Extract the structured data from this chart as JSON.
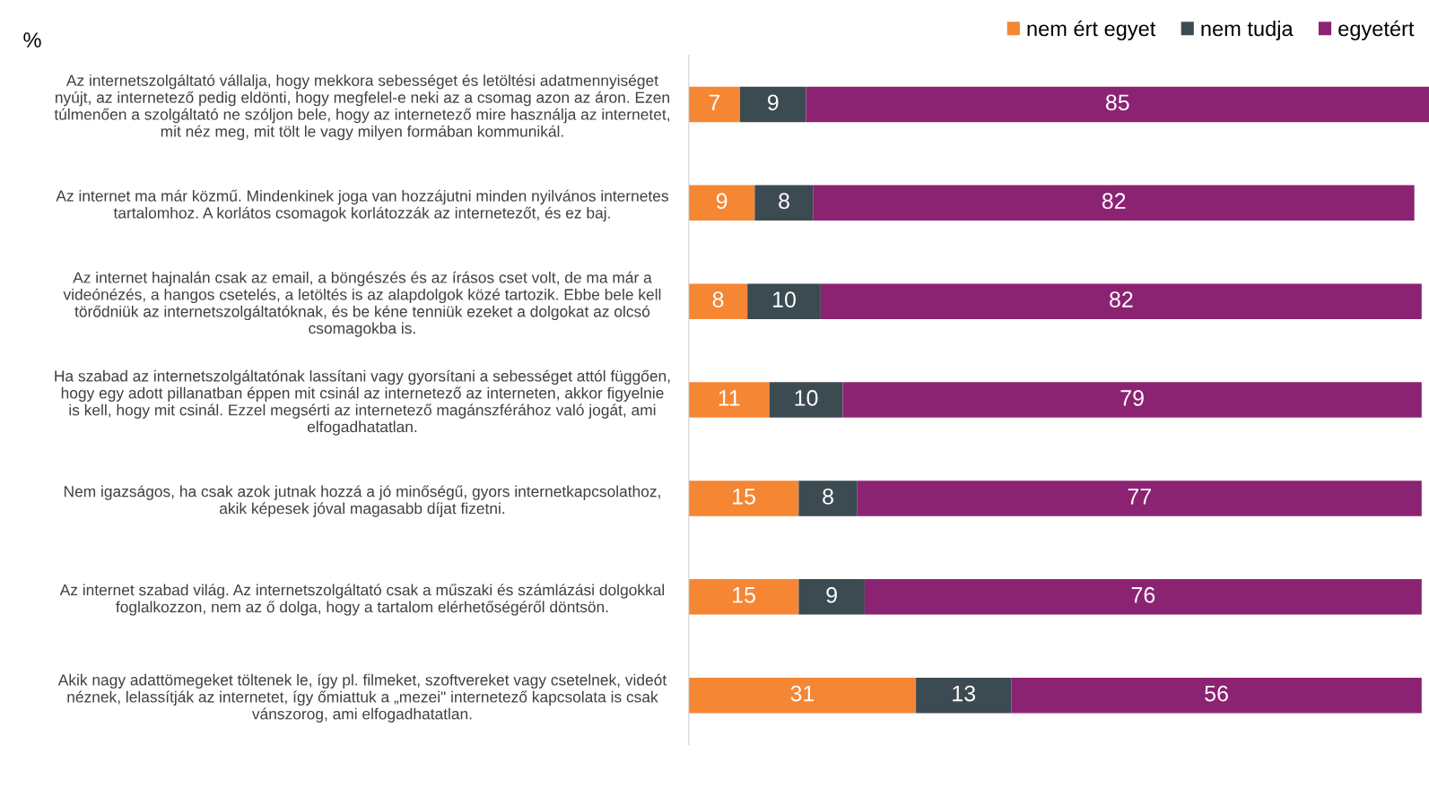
{
  "chart_data": {
    "type": "bar",
    "orientation": "horizontal",
    "stacked": true,
    "title": "%",
    "legend": "top right",
    "data_labels": true,
    "grid": false,
    "categories": [
      "Az internetszolgáltató vállalja, hogy mekkora sebességet és letöltési adatmennyiséget\nnyújt, az internetező pedig eldönti, hogy megfelel-e neki az a csomag azon az áron. Ezen\ntúlmenően a szolgáltató ne szóljon bele, hogy az internetező mire használja az internetet,\nmit néz meg, mit tölt le vagy milyen formában kommunikál.",
      "Az internet ma már közmű. Mindenkinek joga van hozzájutni minden nyilvános internetes\ntartalomhoz. A korlátos csomagok korlátozzák az internetezőt, és ez baj.",
      "Az internet hajnalán csak az email, a böngészés és az írásos cset volt, de ma már a\nvideónézés, a hangos csetelés, a letöltés is az alapdolgok közé tartozik. Ebbe bele kell\ntörődniük az internetszolgáltatóknak, és be kéne tenniük ezeket a dolgokat az olcsó\ncsomagokba is.",
      "Ha szabad az internetszolgáltatónak lassítani vagy gyorsítani a sebességet attól függően,\nhogy egy adott pillanatban éppen mit csinál az internetező az interneten, akkor figyelnie\nis kell, hogy mit csinál. Ezzel megsérti az internetező magánszférához való jogát, ami\nelfogadhatatlan.",
      "Nem igazságos, ha csak azok jutnak hozzá a jó minőségű, gyors internetkapcsolathoz,\nakik képesek jóval magasabb díjat fizetni.",
      "Az internet szabad világ. Az internetszolgáltató csak a műszaki és számlázási dolgokkal\nfoglalkozzon, nem az ő dolga, hogy a tartalom elérhetőségéről döntsön.",
      "Akik nagy adattömegeket töltenek le, így pl. filmeket, szoftvereket vagy csetelnek, videót\nnéznek, lelassítják az internetet, így őmiattuk a „mezei\" internetező kapcsolata is csak\nvánszorog, ami elfogadhatatlan."
    ],
    "series": [
      {
        "name": "nem ért egyet",
        "color": "#f58634",
        "values": [
          7,
          9,
          8,
          11,
          15,
          15,
          31
        ]
      },
      {
        "name": "nem tudja",
        "color": "#3c4a52",
        "values": [
          9,
          8,
          10,
          10,
          8,
          9,
          13
        ]
      },
      {
        "name": "egyetért",
        "color": "#8b2372",
        "values": [
          85,
          82,
          82,
          79,
          77,
          76,
          56
        ]
      }
    ]
  }
}
